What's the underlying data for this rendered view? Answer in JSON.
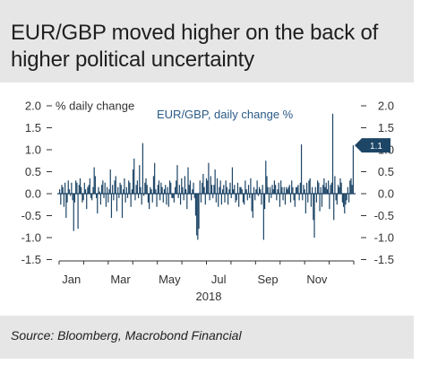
{
  "header": {
    "title_line1": "EUR/GBP moved higher on the back of",
    "title_line2": "higher political uncertainty"
  },
  "footer": {
    "source": "Source: Bloomberg, Macrobond Financial"
  },
  "colors": {
    "bar": "#1d4566",
    "text": "#333333",
    "series_label": "#2a5a86",
    "callout_bg": "#1d4566",
    "callout_text": "#ffffff"
  },
  "chart_data": {
    "type": "bar",
    "title": "",
    "xlabel": "2018",
    "ylabel": "% daily change",
    "ylim": [
      -1.75,
      2.1
    ],
    "y_ticks": [
      2.0,
      1.5,
      1.0,
      0.5,
      0.0,
      -0.5,
      -1.0,
      -1.5
    ],
    "y_tick_labels": [
      "2.0",
      "1.5",
      "1.0",
      "0.5",
      "0.0",
      "-0.5",
      "-1.0",
      "-1.5"
    ],
    "x_tick_labels": [
      "Jan",
      "Mar",
      "May",
      "Jul",
      "Sep",
      "Nov"
    ],
    "grid": false,
    "legend_position": "top",
    "series": [
      {
        "name": "EUR/GBP, daily change %",
        "x_start": "2018-01-01",
        "values": [
          0.1,
          -0.25,
          0.2,
          0.15,
          -0.3,
          0.25,
          -0.55,
          -0.2,
          0.3,
          0.1,
          -0.05,
          0.25,
          -0.15,
          -0.85,
          -0.2,
          0.3,
          0.25,
          -0.8,
          0.2,
          0.35,
          0.15,
          -0.2,
          -0.15,
          0.25,
          0.1,
          -0.35,
          0.15,
          0.2,
          0.35,
          -0.1,
          -0.15,
          0.15,
          0.6,
          0.4,
          -0.1,
          -0.45,
          0.15,
          0.05,
          -0.25,
          0.2,
          0.3,
          -0.1,
          0.25,
          -0.3,
          0.15,
          -0.2,
          0.1,
          0.55,
          -0.55,
          0.2,
          -0.15,
          0.3,
          0.4,
          -0.4,
          0.15,
          -0.1,
          0.25,
          0.2,
          -0.55,
          0.1,
          0.35,
          -0.2,
          0.15,
          -0.1,
          0.3,
          0.25,
          -0.3,
          0.1,
          0.55,
          0.8,
          -0.15,
          0.2,
          0.3,
          -0.1,
          0.65,
          0.15,
          -0.25,
          1.15,
          -0.05,
          0.25,
          0.35,
          0.2,
          -0.2,
          -0.35,
          0.15,
          0.1,
          -0.2,
          0.4,
          0.7,
          0.1,
          -0.3,
          0.2,
          0.3,
          -0.15,
          0.25,
          0.15,
          -0.2,
          0.1,
          0.2,
          -0.25,
          0.15,
          -0.3,
          0.3,
          0.25,
          -0.1,
          -0.1,
          -0.2,
          0.15,
          0.3,
          0.65,
          -0.1,
          0.2,
          -0.25,
          0.35,
          0.15,
          -0.15,
          0.4,
          0.1,
          -0.35,
          0.6,
          0.2,
          0.3,
          -0.15,
          0.1,
          0.25,
          -0.1,
          -0.5,
          -0.95,
          -1.05,
          -0.8,
          0.3,
          -0.2,
          0.25,
          0.45,
          0.15,
          -0.25,
          0.35,
          0.3,
          0.7,
          -0.15,
          0.4,
          0.2,
          -0.1,
          0.2,
          0.55,
          -0.2,
          0.35,
          -0.3,
          0.15,
          0.3,
          -0.25,
          0.1,
          0.2,
          -0.2,
          0.3,
          0.15,
          -0.25,
          0.1,
          0.25,
          -0.1,
          0.6,
          0.1,
          0.2,
          -0.2,
          -0.15,
          0.25,
          -0.3,
          0.15,
          0.15,
          0.1,
          -0.2,
          -0.25,
          0.3,
          0.1,
          -0.15,
          0.2,
          -0.1,
          0.35,
          -0.4,
          -0.55,
          0.15,
          -0.15,
          0.1,
          0.3,
          -0.05,
          0.15,
          0.1,
          -0.25,
          0.2,
          -1.05,
          -0.35,
          0.75,
          0.4,
          0.15,
          -0.2,
          0.15,
          -0.1,
          0.2,
          0.1,
          0.3,
          0.2,
          -0.15,
          0.1,
          0.25,
          -0.3,
          0.3,
          0.15,
          -0.15,
          0.15,
          -0.25,
          0.15,
          0.1,
          0.15,
          0.2,
          -0.2,
          0.3,
          0.15,
          -0.15,
          -0.3,
          0.15,
          0.15,
          0.2,
          -0.15,
          0.25,
          1.12,
          -0.15,
          0.2,
          0.1,
          -0.45,
          0.25,
          -0.2,
          0.3,
          0.35,
          -0.3,
          0.15,
          -0.6,
          -1.0,
          0.15,
          -0.2,
          0.3,
          0.25,
          -0.4,
          0.15,
          -0.3,
          0.2,
          0.35,
          0.15,
          0.25,
          0.1,
          0.3,
          -0.35,
          0.2,
          0.25,
          1.82,
          -0.6,
          0.4,
          -0.15,
          -0.25,
          0.2,
          0.15,
          0.35,
          0.25,
          -0.2,
          -0.3,
          -0.45,
          -0.25,
          -0.15,
          0.15,
          -0.2,
          0.3,
          0.35,
          0.2,
          1.1
        ]
      }
    ],
    "callout": {
      "label": "1.1",
      "value": 1.1
    }
  }
}
